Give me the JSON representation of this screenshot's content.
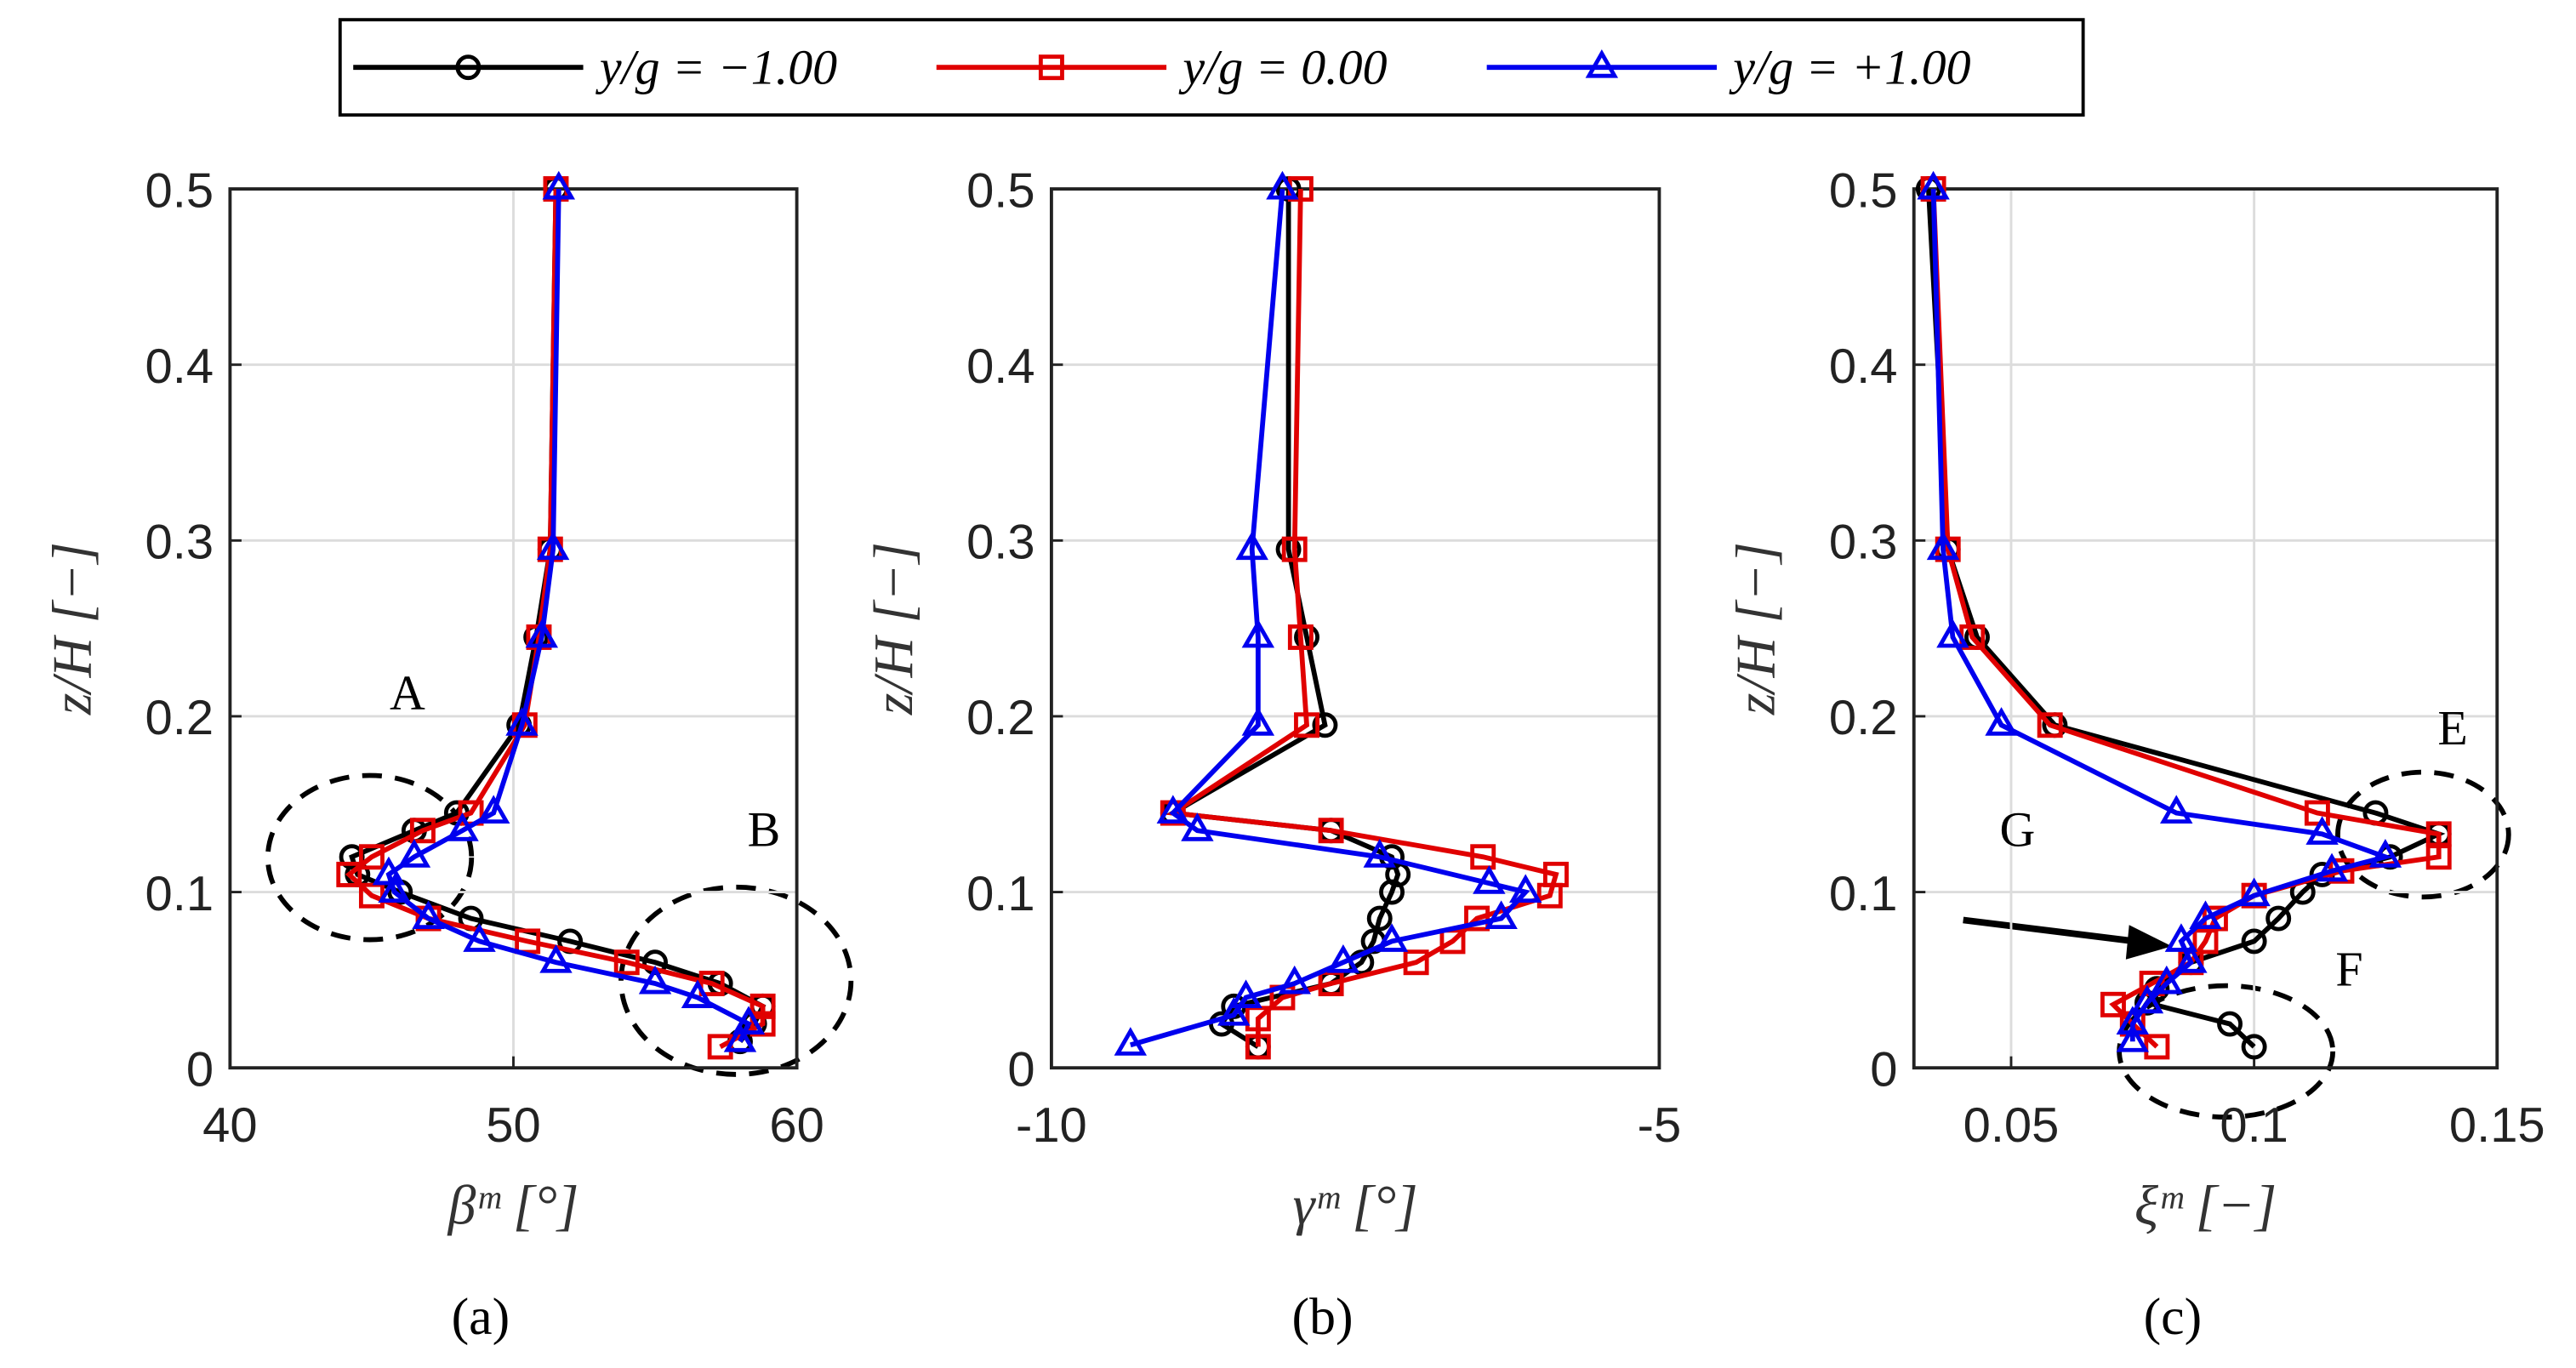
{
  "chart_data": [
    {
      "type": "line",
      "panel": "(a)",
      "xlabel": "βᵐ [°]",
      "ylabel": "z/H [−]",
      "xlim": [
        40,
        60
      ],
      "xticks": [
        40,
        50,
        60
      ],
      "ylim": [
        0,
        0.5
      ],
      "yticks": [
        0,
        0.1,
        0.2,
        0.3,
        0.4,
        0.5
      ],
      "grid": true,
      "annotations": [
        "A",
        "B"
      ],
      "series": [
        {
          "name": "y/g = −1.00",
          "color": "#000000",
          "marker": "circle",
          "x": [
            51.5,
            51.3,
            50.8,
            50.2,
            48,
            46.5,
            44.3,
            44.5,
            46,
            48.5,
            52,
            55,
            57.3,
            58.8,
            58.5,
            58
          ],
          "y": [
            0.5,
            0.295,
            0.245,
            0.195,
            0.145,
            0.135,
            0.12,
            0.11,
            0.1,
            0.085,
            0.072,
            0.06,
            0.048,
            0.035,
            0.025,
            0.015
          ]
        },
        {
          "name": "y/g = 0.00",
          "color": "#e00000",
          "marker": "square",
          "x": [
            51.5,
            51.3,
            50.9,
            50.4,
            48.5,
            46.8,
            45,
            44.2,
            45,
            47,
            50.5,
            54,
            57,
            58.8,
            58.8,
            57.3
          ],
          "y": [
            0.5,
            0.295,
            0.245,
            0.195,
            0.145,
            0.135,
            0.12,
            0.11,
            0.098,
            0.085,
            0.072,
            0.06,
            0.048,
            0.035,
            0.025,
            0.012
          ]
        },
        {
          "name": "y/g = +1.00",
          "color": "#0000ee",
          "marker": "triangle",
          "x": [
            51.6,
            51.4,
            51,
            50.3,
            49.3,
            48.2,
            46.5,
            45.6,
            45.8,
            47,
            48.8,
            51.5,
            55,
            56.5,
            58.3,
            58
          ],
          "y": [
            0.5,
            0.295,
            0.245,
            0.195,
            0.145,
            0.135,
            0.12,
            0.11,
            0.1,
            0.085,
            0.072,
            0.06,
            0.048,
            0.04,
            0.025,
            0.015
          ]
        }
      ]
    },
    {
      "type": "line",
      "panel": "(b)",
      "xlabel": "γᵐ [°]",
      "ylabel": "z/H [−]",
      "xlim": [
        -10,
        -5
      ],
      "xticks": [
        -10,
        -5
      ],
      "ylim": [
        0,
        0.5
      ],
      "yticks": [
        0,
        0.1,
        0.2,
        0.3,
        0.4,
        0.5
      ],
      "grid": true,
      "annotations": [],
      "series": [
        {
          "name": "y/g = −1.00",
          "color": "#000000",
          "marker": "circle",
          "x": [
            -8.05,
            -8.05,
            -7.9,
            -7.75,
            -9.0,
            -7.7,
            -7.2,
            -7.15,
            -7.2,
            -7.3,
            -7.35,
            -7.45,
            -7.7,
            -8.5,
            -8.6,
            -8.3
          ],
          "y": [
            0.5,
            0.295,
            0.245,
            0.195,
            0.145,
            0.135,
            0.12,
            0.11,
            0.1,
            0.085,
            0.072,
            0.06,
            0.048,
            0.035,
            0.025,
            0.012
          ]
        },
        {
          "name": "y/g = 0.00",
          "color": "#e00000",
          "marker": "square",
          "x": [
            -7.95,
            -8.0,
            -7.95,
            -7.9,
            -9.0,
            -7.7,
            -6.45,
            -5.85,
            -5.9,
            -6.5,
            -6.7,
            -7.0,
            -7.7,
            -8.1,
            -8.3,
            -8.3
          ],
          "y": [
            0.5,
            0.295,
            0.245,
            0.195,
            0.145,
            0.135,
            0.12,
            0.11,
            0.098,
            0.085,
            0.072,
            0.06,
            0.048,
            0.04,
            0.028,
            0.012
          ]
        },
        {
          "name": "y/g = +1.00",
          "color": "#0000ee",
          "marker": "triangle",
          "x": [
            -8.1,
            -8.35,
            -8.3,
            -8.3,
            -9.0,
            -8.8,
            -7.3,
            -6.4,
            -6.1,
            -6.3,
            -7.2,
            -7.6,
            -8.0,
            -8.4,
            -8.5,
            -9.35
          ],
          "y": [
            0.5,
            0.295,
            0.245,
            0.195,
            0.145,
            0.135,
            0.12,
            0.105,
            0.1,
            0.085,
            0.072,
            0.06,
            0.048,
            0.04,
            0.03,
            0.013
          ]
        }
      ]
    },
    {
      "type": "line",
      "panel": "(c)",
      "xlabel": "ξᵐ [−]",
      "ylabel": "z/H [−]",
      "xlim": [
        0.03,
        0.15
      ],
      "xticks": [
        0.05,
        0.1,
        0.15
      ],
      "ylim": [
        0,
        0.5
      ],
      "yticks": [
        0,
        0.1,
        0.2,
        0.3,
        0.4,
        0.5
      ],
      "grid": true,
      "annotations": [
        "E",
        "G",
        "F"
      ],
      "series": [
        {
          "name": "y/g = −1.00",
          "color": "#000000",
          "marker": "circle",
          "x": [
            0.033,
            0.037,
            0.043,
            0.059,
            0.125,
            0.138,
            0.128,
            0.114,
            0.11,
            0.105,
            0.1,
            0.087,
            0.08,
            0.078,
            0.095,
            0.1
          ],
          "y": [
            0.5,
            0.295,
            0.245,
            0.195,
            0.145,
            0.133,
            0.12,
            0.11,
            0.1,
            0.085,
            0.072,
            0.06,
            0.045,
            0.037,
            0.025,
            0.012
          ]
        },
        {
          "name": "y/g = 0.00",
          "color": "#e00000",
          "marker": "square",
          "x": [
            0.034,
            0.037,
            0.042,
            0.058,
            0.113,
            0.138,
            0.138,
            0.118,
            0.1,
            0.092,
            0.09,
            0.087,
            0.079,
            0.071,
            0.075,
            0.08
          ],
          "y": [
            0.5,
            0.295,
            0.245,
            0.195,
            0.145,
            0.133,
            0.12,
            0.112,
            0.098,
            0.085,
            0.072,
            0.06,
            0.048,
            0.036,
            0.025,
            0.012
          ]
        },
        {
          "name": "y/g = +1.00",
          "color": "#0000ee",
          "marker": "triangle",
          "x": [
            0.034,
            0.036,
            0.038,
            0.048,
            0.084,
            0.114,
            0.127,
            0.116,
            0.1,
            0.09,
            0.085,
            0.087,
            0.082,
            0.078,
            0.075,
            0.075
          ],
          "y": [
            0.5,
            0.295,
            0.245,
            0.195,
            0.145,
            0.133,
            0.12,
            0.112,
            0.098,
            0.085,
            0.072,
            0.06,
            0.048,
            0.037,
            0.025,
            0.015
          ]
        }
      ]
    }
  ]
}
